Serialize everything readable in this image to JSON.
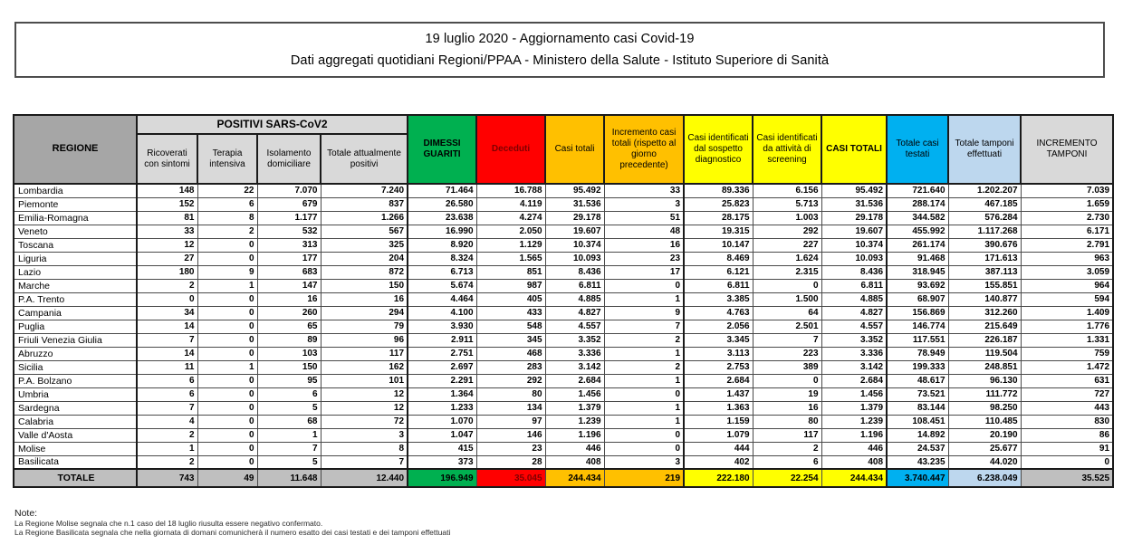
{
  "header": {
    "line1": "19 luglio 2020 - Aggiornamento casi Covid-19",
    "line2": "Dati aggregati quotidiani Regioni/PPAA - Ministero della Salute - Istituto Superiore di Sanità"
  },
  "table": {
    "group_header": "POSITIVI SARS-CoV2",
    "columns": [
      {
        "key": "regione",
        "label": "REGIONE"
      },
      {
        "key": "ricoverati_con_sintomi",
        "label": "Ricoverati con sintomi"
      },
      {
        "key": "terapia_intensiva",
        "label": "Terapia intensiva"
      },
      {
        "key": "isolamento_domiciliare",
        "label": "Isolamento domiciliare"
      },
      {
        "key": "totale_attualmente_positivi",
        "label": "Totale attualmente positivi"
      },
      {
        "key": "dimessi_guariti",
        "label": "DIMESSI GUARITI"
      },
      {
        "key": "deceduti",
        "label": "Deceduti"
      },
      {
        "key": "casi_totali",
        "label": "Casi totali"
      },
      {
        "key": "incremento_casi_totali",
        "label": "Incremento casi totali (rispetto al giorno precedente)"
      },
      {
        "key": "casi_sospetto_diagnostico",
        "label": "Casi identificati dal sospetto diagnostico"
      },
      {
        "key": "casi_screening",
        "label": "Casi identificati da attività di screening"
      },
      {
        "key": "casi_totali_2",
        "label": "CASI TOTALI"
      },
      {
        "key": "totale_casi_testati",
        "label": "Totale casi testati"
      },
      {
        "key": "totale_tamponi_effettuati",
        "label": "Totale tamponi effettuati"
      },
      {
        "key": "incremento_tamponi",
        "label": "INCREMENTO TAMPONI"
      }
    ],
    "rows": [
      [
        "Lombardia",
        "148",
        "22",
        "7.070",
        "7.240",
        "71.464",
        "16.788",
        "95.492",
        "33",
        "89.336",
        "6.156",
        "95.492",
        "721.640",
        "1.202.207",
        "7.039"
      ],
      [
        "Piemonte",
        "152",
        "6",
        "679",
        "837",
        "26.580",
        "4.119",
        "31.536",
        "3",
        "25.823",
        "5.713",
        "31.536",
        "288.174",
        "467.185",
        "1.659"
      ],
      [
        "Emilia-Romagna",
        "81",
        "8",
        "1.177",
        "1.266",
        "23.638",
        "4.274",
        "29.178",
        "51",
        "28.175",
        "1.003",
        "29.178",
        "344.582",
        "576.284",
        "2.730"
      ],
      [
        "Veneto",
        "33",
        "2",
        "532",
        "567",
        "16.990",
        "2.050",
        "19.607",
        "48",
        "19.315",
        "292",
        "19.607",
        "455.992",
        "1.117.268",
        "6.171"
      ],
      [
        "Toscana",
        "12",
        "0",
        "313",
        "325",
        "8.920",
        "1.129",
        "10.374",
        "16",
        "10.147",
        "227",
        "10.374",
        "261.174",
        "390.676",
        "2.791"
      ],
      [
        "Liguria",
        "27",
        "0",
        "177",
        "204",
        "8.324",
        "1.565",
        "10.093",
        "23",
        "8.469",
        "1.624",
        "10.093",
        "91.468",
        "171.613",
        "963"
      ],
      [
        "Lazio",
        "180",
        "9",
        "683",
        "872",
        "6.713",
        "851",
        "8.436",
        "17",
        "6.121",
        "2.315",
        "8.436",
        "318.945",
        "387.113",
        "3.059"
      ],
      [
        "Marche",
        "2",
        "1",
        "147",
        "150",
        "5.674",
        "987",
        "6.811",
        "0",
        "6.811",
        "0",
        "6.811",
        "93.692",
        "155.851",
        "964"
      ],
      [
        "P.A. Trento",
        "0",
        "0",
        "16",
        "16",
        "4.464",
        "405",
        "4.885",
        "1",
        "3.385",
        "1.500",
        "4.885",
        "68.907",
        "140.877",
        "594"
      ],
      [
        "Campania",
        "34",
        "0",
        "260",
        "294",
        "4.100",
        "433",
        "4.827",
        "9",
        "4.763",
        "64",
        "4.827",
        "156.869",
        "312.260",
        "1.409"
      ],
      [
        "Puglia",
        "14",
        "0",
        "65",
        "79",
        "3.930",
        "548",
        "4.557",
        "7",
        "2.056",
        "2.501",
        "4.557",
        "146.774",
        "215.649",
        "1.776"
      ],
      [
        "Friuli Venezia Giulia",
        "7",
        "0",
        "89",
        "96",
        "2.911",
        "345",
        "3.352",
        "2",
        "3.345",
        "7",
        "3.352",
        "117.551",
        "226.187",
        "1.331"
      ],
      [
        "Abruzzo",
        "14",
        "0",
        "103",
        "117",
        "2.751",
        "468",
        "3.336",
        "1",
        "3.113",
        "223",
        "3.336",
        "78.949",
        "119.504",
        "759"
      ],
      [
        "Sicilia",
        "11",
        "1",
        "150",
        "162",
        "2.697",
        "283",
        "3.142",
        "2",
        "2.753",
        "389",
        "3.142",
        "199.333",
        "248.851",
        "1.472"
      ],
      [
        "P.A. Bolzano",
        "6",
        "0",
        "95",
        "101",
        "2.291",
        "292",
        "2.684",
        "1",
        "2.684",
        "0",
        "2.684",
        "48.617",
        "96.130",
        "631"
      ],
      [
        "Umbria",
        "6",
        "0",
        "6",
        "12",
        "1.364",
        "80",
        "1.456",
        "0",
        "1.437",
        "19",
        "1.456",
        "73.521",
        "111.772",
        "727"
      ],
      [
        "Sardegna",
        "7",
        "0",
        "5",
        "12",
        "1.233",
        "134",
        "1.379",
        "1",
        "1.363",
        "16",
        "1.379",
        "83.144",
        "98.250",
        "443"
      ],
      [
        "Calabria",
        "4",
        "0",
        "68",
        "72",
        "1.070",
        "97",
        "1.239",
        "1",
        "1.159",
        "80",
        "1.239",
        "108.451",
        "110.485",
        "830"
      ],
      [
        "Valle d'Aosta",
        "2",
        "0",
        "1",
        "3",
        "1.047",
        "146",
        "1.196",
        "0",
        "1.079",
        "117",
        "1.196",
        "14.892",
        "20.190",
        "86"
      ],
      [
        "Molise",
        "1",
        "0",
        "7",
        "8",
        "415",
        "23",
        "446",
        "0",
        "444",
        "2",
        "446",
        "24.537",
        "25.677",
        "91"
      ],
      [
        "Basilicata",
        "2",
        "0",
        "5",
        "7",
        "373",
        "28",
        "408",
        "3",
        "402",
        "6",
        "408",
        "43.235",
        "44.020",
        "0"
      ]
    ],
    "total_row": [
      "TOTALE",
      "743",
      "49",
      "11.648",
      "12.440",
      "196.949",
      "35.045",
      "244.434",
      "219",
      "222.180",
      "22.254",
      "244.434",
      "3.740.447",
      "6.238.049",
      "35.525"
    ]
  },
  "notes": {
    "heading": "Note:",
    "lines": [
      "La Regione Molise segnala che n.1 caso del 18 luglio riusulta essere negativo confermato.",
      "La Regione Basilicata segnala che nella giornata di domani comunicherà il numero esatto dei casi testati e dei tamponi effettuati"
    ]
  },
  "colors": {
    "regione_header_gray": "#A6A6A6",
    "subheader_gray": "#D9D9D9",
    "green": "#00B050",
    "red": "#FF0000",
    "orange": "#FFC000",
    "yellow": "#FFFF00",
    "cyan": "#00B0F0",
    "light_blue": "#BDD7EE",
    "total_row_gray": "#BFBFBF",
    "dark_red_text": "#7F0000"
  }
}
